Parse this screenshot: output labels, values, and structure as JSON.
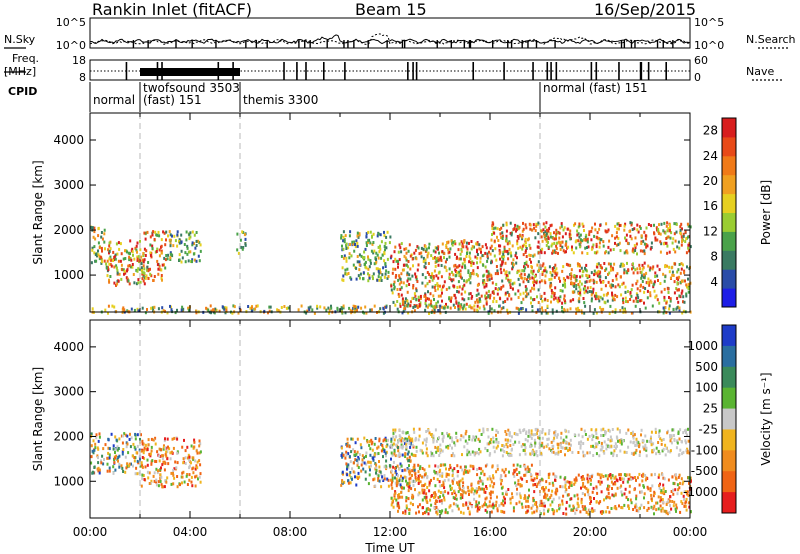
{
  "header": {
    "station": "Rankin Inlet (fitACF)",
    "beam": "Beam 15",
    "date": "16/Sep/2015"
  },
  "side_labels": {
    "nsky": "N.Sky",
    "nsearch": "N.Search",
    "freq": "Freq.",
    "freq_unit": "[MHz]",
    "nave": "Nave",
    "cpid": "CPID"
  },
  "noise_panel": {
    "left_ticks": [
      "10^5",
      "10^0"
    ],
    "right_ticks": [
      "10^5",
      "10^0"
    ]
  },
  "freq_panel": {
    "left_ticks": [
      "18",
      "8"
    ],
    "right_ticks": [
      "60",
      "0"
    ]
  },
  "cpid_segments": [
    {
      "label": "normal",
      "start_hour": 0
    },
    {
      "label": "twofsound 3503",
      "start_hour": 2
    },
    {
      "label": "(fast) 151",
      "start_hour": 2
    },
    {
      "label": "themis 3300",
      "start_hour": 6
    },
    {
      "label": "normal (fast) 151",
      "start_hour": 18
    }
  ],
  "chart_data": [
    {
      "type": "heatmap",
      "quantity": "power",
      "ylabel": "Slant Range [km]",
      "ylim": [
        180,
        4600
      ],
      "yticks": [
        "1000",
        "2000",
        "3000",
        "4000"
      ],
      "xlim_hours": [
        0,
        24
      ],
      "colorbar": {
        "label": "Power [dB]",
        "ticks": [
          "4",
          "8",
          "12",
          "16",
          "20",
          "24",
          "28"
        ],
        "colors": [
          "#1e1ee6",
          "#2a4ca8",
          "#3a7a62",
          "#4aa24a",
          "#9acd32",
          "#e6d020",
          "#f0a020",
          "#f07a18",
          "#e84a18",
          "#d81e1e"
        ]
      },
      "dashed_lines_hours": [
        2,
        6,
        18
      ],
      "scatter_regions": [
        {
          "start_hour": 0.0,
          "end_hour": 0.6,
          "range_min": 1200,
          "range_max": 2100,
          "level": "mid-high"
        },
        {
          "start_hour": 0.6,
          "end_hour": 2.2,
          "range_min": 800,
          "range_max": 1800,
          "level": "high"
        },
        {
          "start_hour": 2.0,
          "end_hour": 3.0,
          "range_min": 900,
          "range_max": 2000,
          "level": "high"
        },
        {
          "start_hour": 3.0,
          "end_hour": 4.4,
          "range_min": 1300,
          "range_max": 2000,
          "level": "mid"
        },
        {
          "start_hour": 5.8,
          "end_hour": 6.2,
          "range_min": 1500,
          "range_max": 2000,
          "level": "mid"
        },
        {
          "start_hour": 10.0,
          "end_hour": 12.0,
          "range_min": 900,
          "range_max": 2000,
          "level": "mid"
        },
        {
          "start_hour": 12.0,
          "end_hour": 16.0,
          "range_min": 300,
          "range_max": 1800,
          "level": "high"
        },
        {
          "start_hour": 16.0,
          "end_hour": 18.0,
          "range_min": 400,
          "range_max": 2200,
          "level": "high"
        },
        {
          "start_hour": 18.0,
          "end_hour": 24.0,
          "range_min": 1500,
          "range_max": 2200,
          "level": "high"
        },
        {
          "start_hour": 18.0,
          "end_hour": 24.0,
          "range_min": 400,
          "range_max": 1300,
          "level": "high"
        },
        {
          "start_hour": 0.0,
          "end_hour": 24.0,
          "range_min": 180,
          "range_max": 350,
          "level": "low"
        }
      ]
    },
    {
      "type": "heatmap",
      "quantity": "velocity",
      "ylabel": "Slant Range [km]",
      "ylim": [
        180,
        4600
      ],
      "yticks": [
        "1000",
        "2000",
        "3000",
        "4000"
      ],
      "xlabel": "Time UT",
      "xlim_hours": [
        0,
        24
      ],
      "xticks": [
        "00:00",
        "04:00",
        "08:00",
        "12:00",
        "16:00",
        "20:00",
        "00:00"
      ],
      "colorbar": {
        "label": "Velocity [m s⁻¹]",
        "ticks": [
          "1000",
          "500",
          "100",
          "25",
          "-25",
          "-100",
          "-500",
          "-1000"
        ],
        "colors": [
          "#1e3cc8",
          "#2a6ea0",
          "#3a8a5a",
          "#5ab432",
          "#c8c8c8",
          "#f0b41e",
          "#f08c1e",
          "#f06414",
          "#e61e1e"
        ]
      },
      "dashed_lines_hours": [
        2,
        6,
        18
      ],
      "scatter_regions": [
        {
          "start_hour": 0.0,
          "end_hour": 2.0,
          "range_min": 1200,
          "range_max": 2100,
          "level": "mixed"
        },
        {
          "start_hour": 2.0,
          "end_hour": 4.4,
          "range_min": 900,
          "range_max": 2000,
          "level": "negative"
        },
        {
          "start_hour": 10.0,
          "end_hour": 13.0,
          "range_min": 900,
          "range_max": 2000,
          "level": "mixed"
        },
        {
          "start_hour": 12.0,
          "end_hour": 18.0,
          "range_min": 300,
          "range_max": 1400,
          "level": "negative"
        },
        {
          "start_hour": 12.0,
          "end_hour": 24.0,
          "range_min": 1600,
          "range_max": 2200,
          "level": "near-zero"
        },
        {
          "start_hour": 18.0,
          "end_hour": 24.0,
          "range_min": 300,
          "range_max": 1200,
          "level": "negative"
        }
      ]
    }
  ]
}
